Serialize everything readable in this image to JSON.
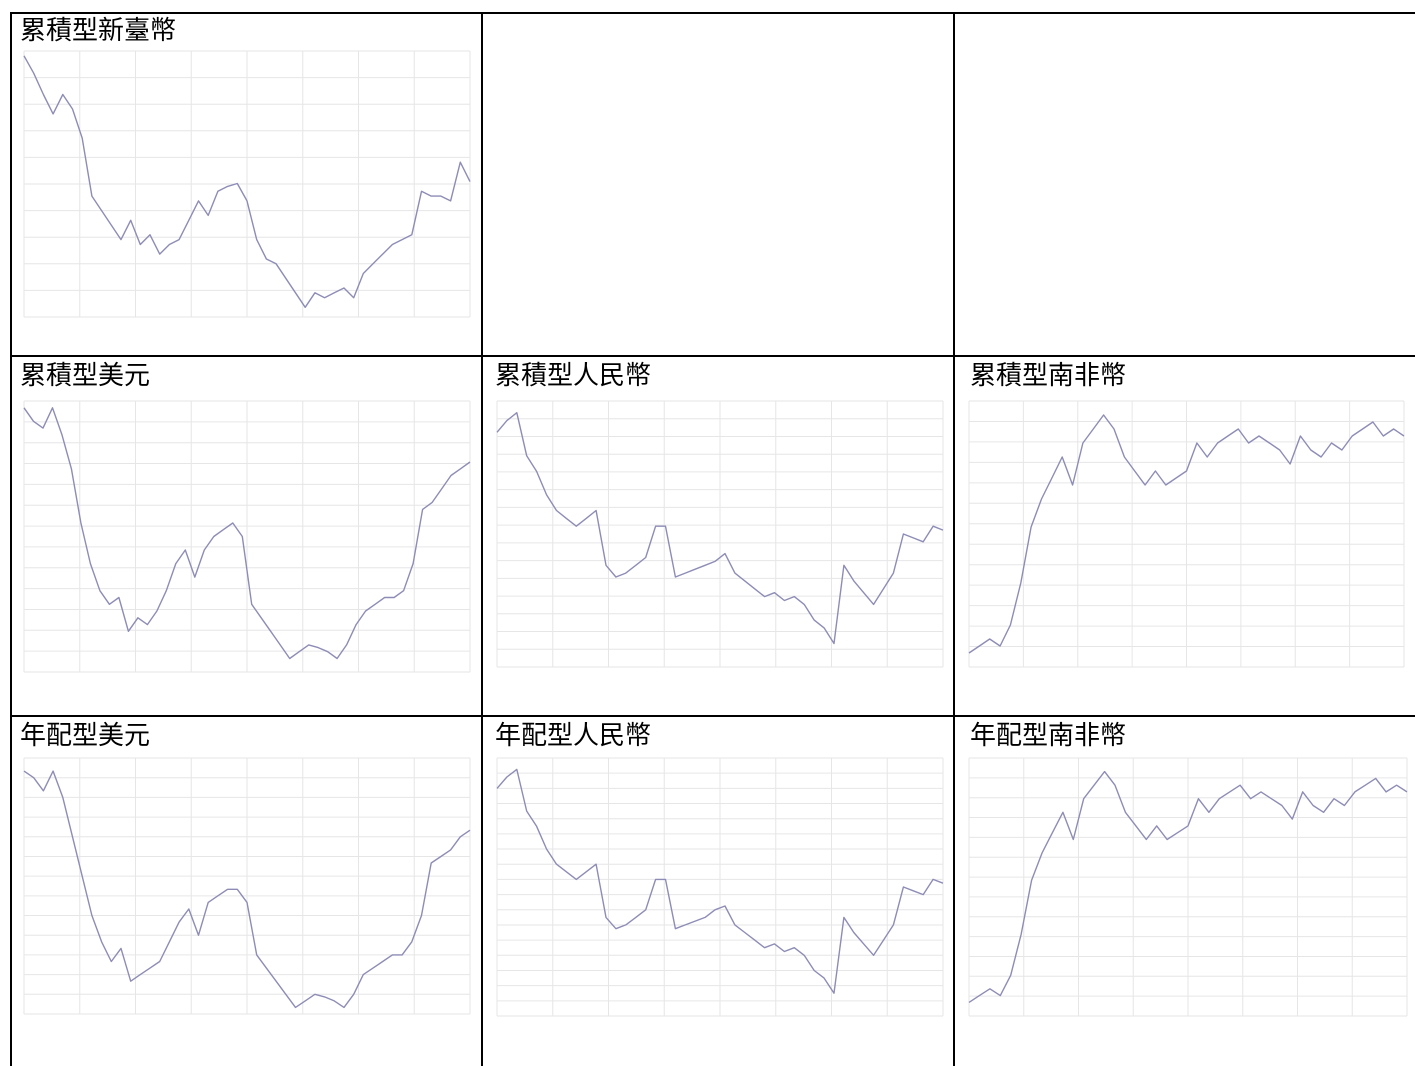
{
  "header_text": "",
  "chart_data": [
    {
      "type": "line",
      "title": "累積型新臺幣",
      "line_color": "#8d8cb6",
      "grid": true,
      "x_tick_count": 8,
      "y_tick_count": 11,
      "values": [
        10.0,
        9.82,
        9.6,
        9.4,
        9.6,
        9.45,
        9.15,
        8.55,
        8.4,
        8.25,
        8.1,
        8.3,
        8.05,
        8.15,
        7.95,
        8.05,
        8.1,
        8.3,
        8.5,
        8.35,
        8.6,
        8.65,
        8.68,
        8.5,
        8.1,
        7.9,
        7.85,
        7.7,
        7.55,
        7.4,
        7.55,
        7.5,
        7.55,
        7.6,
        7.5,
        7.75,
        7.85,
        7.95,
        8.05,
        8.1,
        8.15,
        8.6,
        8.55,
        8.55,
        8.5,
        8.9,
        8.7
      ],
      "ylim": [
        7.3,
        10.05
      ]
    },
    {
      "type": "line",
      "title": "累積型美元",
      "line_color": "#8d8cb6",
      "grid": true,
      "x_tick_count": 8,
      "y_tick_count": 14,
      "values": [
        10.05,
        9.95,
        9.9,
        10.05,
        9.85,
        9.6,
        9.2,
        8.9,
        8.7,
        8.6,
        8.65,
        8.4,
        8.5,
        8.45,
        8.55,
        8.7,
        8.9,
        9.0,
        8.8,
        9.0,
        9.1,
        9.15,
        9.2,
        9.1,
        8.6,
        8.5,
        8.4,
        8.3,
        8.2,
        8.25,
        8.3,
        8.28,
        8.25,
        8.2,
        8.3,
        8.45,
        8.55,
        8.6,
        8.65,
        8.65,
        8.7,
        8.9,
        9.3,
        9.35,
        9.45,
        9.55,
        9.6,
        9.65
      ],
      "ylim": [
        8.1,
        10.1
      ]
    },
    {
      "type": "line",
      "title": "累積型人民幣",
      "line_color": "#8d8cb6",
      "grid": true,
      "x_tick_count": 8,
      "y_tick_count": 16,
      "values": [
        11.0,
        11.15,
        11.25,
        10.7,
        10.5,
        10.2,
        10.0,
        9.9,
        9.8,
        9.9,
        10.0,
        9.3,
        9.15,
        9.2,
        9.3,
        9.4,
        9.8,
        9.8,
        9.15,
        9.2,
        9.25,
        9.3,
        9.35,
        9.45,
        9.2,
        9.1,
        9.0,
        8.9,
        8.95,
        8.85,
        8.9,
        8.8,
        8.6,
        8.5,
        8.3,
        9.3,
        9.1,
        8.95,
        8.8,
        9.0,
        9.2,
        9.7,
        9.65,
        9.6,
        9.8,
        9.75
      ],
      "ylim": [
        8.0,
        11.4
      ]
    },
    {
      "type": "line",
      "title": "累積型南非幣",
      "line_color": "#8d8cb6",
      "grid": true,
      "x_tick_count": 8,
      "y_tick_count": 14,
      "values": [
        8.0,
        8.05,
        8.1,
        8.05,
        8.2,
        8.5,
        8.9,
        9.1,
        9.25,
        9.4,
        9.2,
        9.5,
        9.6,
        9.7,
        9.6,
        9.4,
        9.3,
        9.2,
        9.3,
        9.2,
        9.25,
        9.3,
        9.5,
        9.4,
        9.5,
        9.55,
        9.6,
        9.5,
        9.55,
        9.5,
        9.45,
        9.35,
        9.55,
        9.45,
        9.4,
        9.5,
        9.45,
        9.55,
        9.6,
        9.65,
        9.55,
        9.6,
        9.55
      ],
      "ylim": [
        7.9,
        9.8
      ]
    },
    {
      "type": "line",
      "title": "年配型美元",
      "line_color": "#8d8cb6",
      "grid": true,
      "x_tick_count": 8,
      "y_tick_count": 14,
      "values": [
        10.0,
        9.95,
        9.85,
        10.0,
        9.8,
        9.5,
        9.2,
        8.9,
        8.7,
        8.55,
        8.65,
        8.4,
        8.45,
        8.5,
        8.55,
        8.7,
        8.85,
        8.95,
        8.75,
        9.0,
        9.05,
        9.1,
        9.1,
        9.0,
        8.6,
        8.5,
        8.4,
        8.3,
        8.2,
        8.25,
        8.3,
        8.28,
        8.25,
        8.2,
        8.3,
        8.45,
        8.5,
        8.55,
        8.6,
        8.6,
        8.7,
        8.9,
        9.3,
        9.35,
        9.4,
        9.5,
        9.55
      ],
      "ylim": [
        8.15,
        10.1
      ]
    },
    {
      "type": "line",
      "title": "年配型人民幣",
      "line_color": "#8d8cb6",
      "grid": true,
      "x_tick_count": 8,
      "y_tick_count": 18,
      "values": [
        11.0,
        11.15,
        11.25,
        10.7,
        10.5,
        10.2,
        10.0,
        9.9,
        9.8,
        9.9,
        10.0,
        9.3,
        9.15,
        9.2,
        9.3,
        9.4,
        9.8,
        9.8,
        9.15,
        9.2,
        9.25,
        9.3,
        9.4,
        9.45,
        9.2,
        9.1,
        9.0,
        8.9,
        8.95,
        8.85,
        8.9,
        8.8,
        8.6,
        8.5,
        8.3,
        9.3,
        9.1,
        8.95,
        8.8,
        9.0,
        9.2,
        9.7,
        9.65,
        9.6,
        9.8,
        9.75
      ],
      "ylim": [
        8.0,
        11.4
      ]
    },
    {
      "type": "line",
      "title": "年配型南非幣",
      "line_color": "#8d8cb6",
      "grid": true,
      "x_tick_count": 8,
      "y_tick_count": 14,
      "values": [
        8.0,
        8.05,
        8.1,
        8.05,
        8.2,
        8.5,
        8.9,
        9.1,
        9.25,
        9.4,
        9.2,
        9.5,
        9.6,
        9.7,
        9.6,
        9.4,
        9.3,
        9.2,
        9.3,
        9.2,
        9.25,
        9.3,
        9.5,
        9.4,
        9.5,
        9.55,
        9.6,
        9.5,
        9.55,
        9.5,
        9.45,
        9.35,
        9.55,
        9.45,
        9.4,
        9.5,
        9.45,
        9.55,
        9.6,
        9.65,
        9.55,
        9.6,
        9.55
      ],
      "ylim": [
        7.9,
        9.8
      ]
    }
  ]
}
